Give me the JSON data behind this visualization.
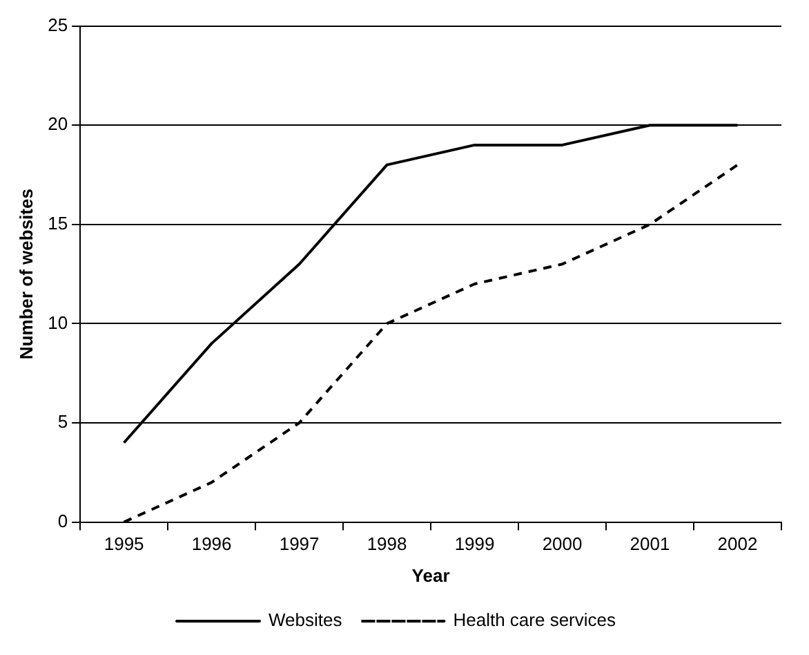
{
  "chart_data": {
    "type": "line",
    "xlabel": "Year",
    "ylabel": "Number of websites",
    "categories": [
      "1995",
      "1996",
      "1997",
      "1998",
      "1999",
      "2000",
      "2001",
      "2002"
    ],
    "series": [
      {
        "name": "Websites",
        "color": "#000000",
        "line_style": "solid",
        "values": [
          4,
          9,
          13,
          18,
          19,
          19,
          20,
          20
        ]
      },
      {
        "name": "Health care services",
        "color": "#000000",
        "line_style": "dashed",
        "values": [
          0,
          2,
          5,
          10,
          12,
          13,
          15,
          18
        ]
      }
    ],
    "ylim": [
      0,
      25
    ],
    "yticks": [
      0,
      5,
      10,
      15,
      20,
      25
    ],
    "grid": "y",
    "legend": "bottom",
    "marker": "none"
  }
}
